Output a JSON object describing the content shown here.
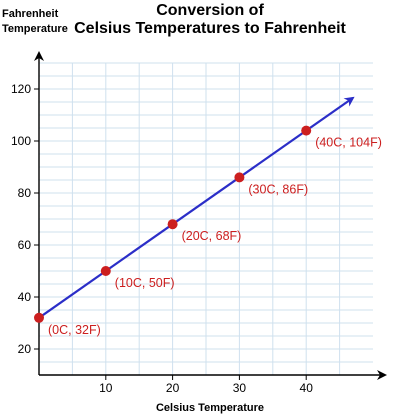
{
  "chart_data": {
    "type": "line",
    "title": "Conversion of\nCelsius Temperatures to Fahrenheit",
    "xlabel": "Celsius Temperature",
    "ylabel": "Fahrenheit\nTemperature",
    "xlim": [
      0,
      50
    ],
    "ylim": [
      10,
      130
    ],
    "x_ticks": [
      10,
      20,
      30,
      40
    ],
    "y_ticks": [
      20,
      40,
      60,
      80,
      100,
      120
    ],
    "grid": true,
    "series": [
      {
        "x": [
          0,
          10,
          20,
          30,
          40
        ],
        "y": [
          32,
          50,
          68,
          86,
          104
        ],
        "labels": [
          "(0C, 32F)",
          "(10C, 50F)",
          "(20C, 68F)",
          "(30C, 86F)",
          "(40C, 104F)"
        ],
        "line_extends_to_x": 47
      }
    ],
    "colors": {
      "line": "#2b2ec8",
      "points": "#cc1f1f",
      "labels": "#cc1f1f",
      "grid": "#cfe0ee"
    }
  }
}
